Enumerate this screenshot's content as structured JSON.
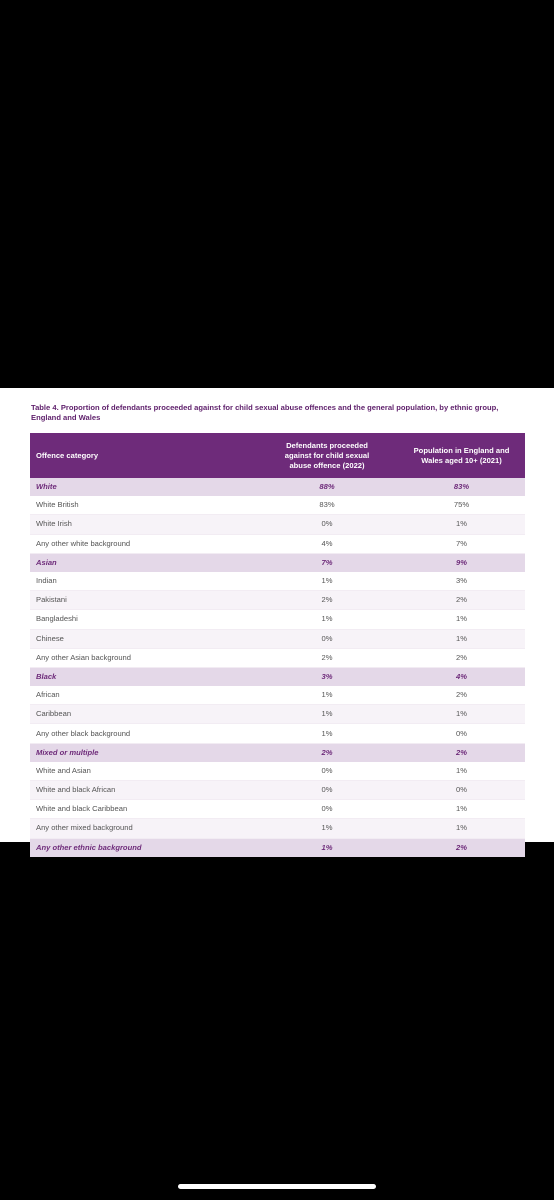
{
  "caption": "Table 4. Proportion of defendants proceeded against for child sexual abuse offences and the general population, by ethnic group, England and Wales",
  "table": {
    "headers": [
      "Offence category",
      "Defendants proceeded against for child sexual abuse offence (2022)",
      "Population in England and Wales aged 10+ (2021)"
    ],
    "rows": [
      {
        "type": "group",
        "category": "White",
        "defendants": "88%",
        "population": "83%"
      },
      {
        "type": "sub",
        "category": "White British",
        "defendants": "83%",
        "population": "75%"
      },
      {
        "type": "sub",
        "category": "White Irish",
        "defendants": "0%",
        "population": "1%"
      },
      {
        "type": "sub",
        "category": "Any other white background",
        "defendants": "4%",
        "population": "7%"
      },
      {
        "type": "group",
        "category": "Asian",
        "defendants": "7%",
        "population": "9%"
      },
      {
        "type": "sub",
        "category": "Indian",
        "defendants": "1%",
        "population": "3%"
      },
      {
        "type": "sub",
        "category": "Pakistani",
        "defendants": "2%",
        "population": "2%"
      },
      {
        "type": "sub",
        "category": "Bangladeshi",
        "defendants": "1%",
        "population": "1%"
      },
      {
        "type": "sub",
        "category": "Chinese",
        "defendants": "0%",
        "population": "1%"
      },
      {
        "type": "sub",
        "category": "Any other Asian background",
        "defendants": "2%",
        "population": "2%"
      },
      {
        "type": "group",
        "category": "Black",
        "defendants": "3%",
        "population": "4%"
      },
      {
        "type": "sub",
        "category": "African",
        "defendants": "1%",
        "population": "2%"
      },
      {
        "type": "sub",
        "category": "Caribbean",
        "defendants": "1%",
        "population": "1%"
      },
      {
        "type": "sub",
        "category": "Any other black background",
        "defendants": "1%",
        "population": "0%"
      },
      {
        "type": "group",
        "category": "Mixed or multiple",
        "defendants": "2%",
        "population": "2%"
      },
      {
        "type": "sub",
        "category": "White and Asian",
        "defendants": "0%",
        "population": "1%"
      },
      {
        "type": "sub",
        "category": "White and black African",
        "defendants": "0%",
        "population": "0%"
      },
      {
        "type": "sub",
        "category": "White and black Caribbean",
        "defendants": "0%",
        "population": "1%"
      },
      {
        "type": "sub",
        "category": "Any other mixed background",
        "defendants": "1%",
        "population": "1%"
      },
      {
        "type": "group",
        "category": "Any other ethnic background",
        "defendants": "1%",
        "population": "2%"
      }
    ]
  },
  "colors": {
    "header_bg": "#6e2b7a",
    "group_row_bg": "#e4d8e8",
    "group_text": "#6e2b7a",
    "caption_text": "#5e1f6b"
  }
}
